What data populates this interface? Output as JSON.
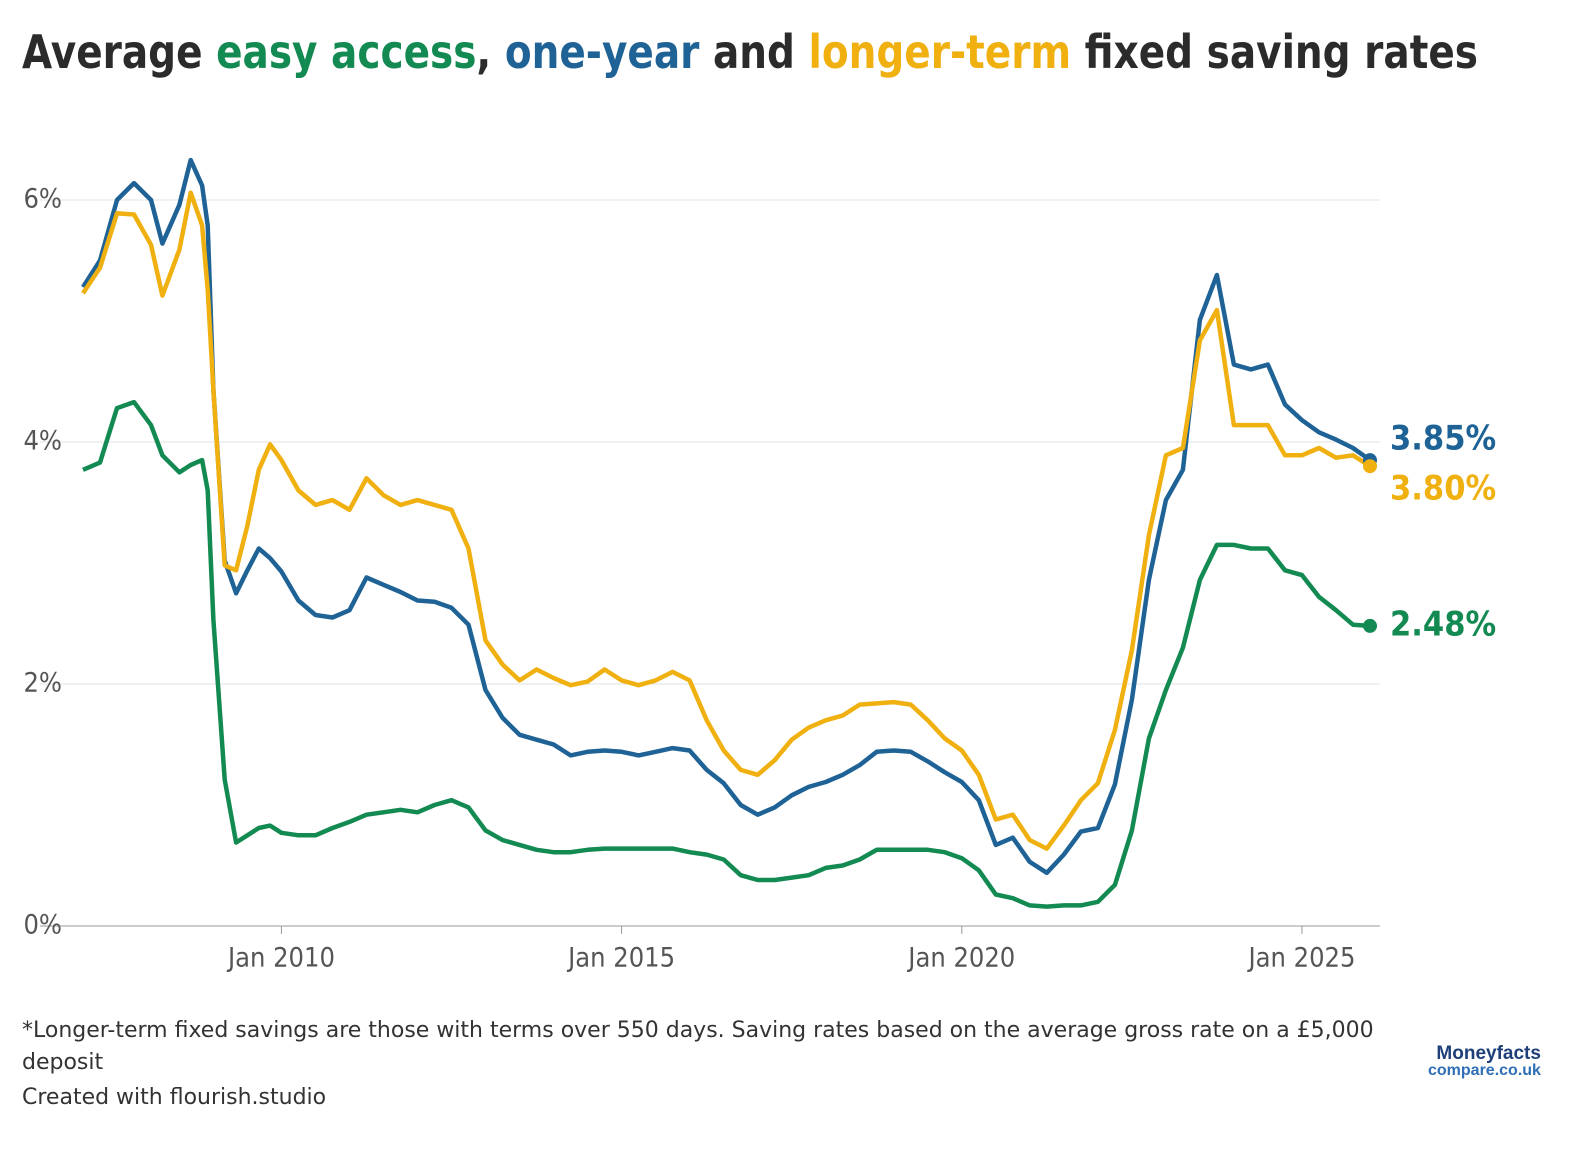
{
  "chart_data": {
    "type": "line",
    "title_parts": [
      {
        "text": "Average ",
        "color": "#2b2b2b"
      },
      {
        "text": "easy access",
        "color": "#138a52"
      },
      {
        "text": ", ",
        "color": "#2b2b2b"
      },
      {
        "text": "one-year",
        "color": "#1f6396"
      },
      {
        "text": " and ",
        "color": "#2b2b2b"
      },
      {
        "text": "longer-term",
        "color": "#efb010"
      },
      {
        "text": " fixed saving rates",
        "color": "#2b2b2b"
      }
    ],
    "x": [
      "2007-02",
      "2007-05",
      "2007-08",
      "2007-11",
      "2008-02",
      "2008-04",
      "2008-07",
      "2008-09",
      "2008-11",
      "2008-12",
      "2009-01",
      "2009-03",
      "2009-05",
      "2009-07",
      "2009-09",
      "2009-11",
      "2010-01",
      "2010-04",
      "2010-07",
      "2010-10",
      "2011-01",
      "2011-04",
      "2011-07",
      "2011-10",
      "2012-01",
      "2012-04",
      "2012-07",
      "2012-10",
      "2013-01",
      "2013-04",
      "2013-07",
      "2013-10",
      "2014-01",
      "2014-04",
      "2014-07",
      "2014-10",
      "2015-01",
      "2015-04",
      "2015-07",
      "2015-10",
      "2016-01",
      "2016-04",
      "2016-07",
      "2016-10",
      "2017-01",
      "2017-04",
      "2017-07",
      "2017-10",
      "2018-01",
      "2018-04",
      "2018-07",
      "2018-10",
      "2019-01",
      "2019-04",
      "2019-07",
      "2019-10",
      "2020-01",
      "2020-04",
      "2020-07",
      "2020-10",
      "2021-01",
      "2021-04",
      "2021-07",
      "2021-10",
      "2022-01",
      "2022-04",
      "2022-07",
      "2022-10",
      "2023-01",
      "2023-04",
      "2023-07",
      "2023-10",
      "2024-01",
      "2024-04",
      "2024-07",
      "2024-10",
      "2025-01",
      "2025-04",
      "2025-07",
      "2025-10",
      "2026-01"
    ],
    "series": [
      {
        "name": "one-year",
        "color": "#1f6396",
        "end_label": "3.85%",
        "values": [
          5.28,
          5.5,
          6.0,
          6.14,
          6.0,
          5.64,
          5.96,
          6.33,
          6.12,
          5.79,
          4.43,
          3.02,
          2.75,
          2.94,
          3.12,
          3.04,
          2.93,
          2.69,
          2.57,
          2.55,
          2.61,
          2.88,
          2.82,
          2.76,
          2.69,
          2.68,
          2.63,
          2.49,
          1.95,
          1.72,
          1.58,
          1.54,
          1.5,
          1.41,
          1.44,
          1.45,
          1.44,
          1.41,
          1.44,
          1.47,
          1.45,
          1.29,
          1.18,
          1.0,
          0.92,
          0.98,
          1.08,
          1.15,
          1.19,
          1.25,
          1.33,
          1.44,
          1.45,
          1.44,
          1.36,
          1.27,
          1.19,
          1.04,
          0.67,
          0.73,
          0.53,
          0.44,
          0.59,
          0.78,
          0.81,
          1.17,
          1.87,
          2.86,
          3.52,
          3.77,
          5.01,
          5.38,
          4.64,
          4.6,
          4.64,
          4.31,
          4.18,
          4.08,
          4.02,
          3.95,
          3.85
        ]
      },
      {
        "name": "longer-term",
        "color": "#efb010",
        "end_label": "3.80%",
        "values": [
          5.23,
          5.44,
          5.89,
          5.88,
          5.63,
          5.21,
          5.59,
          6.06,
          5.79,
          5.26,
          4.43,
          2.98,
          2.94,
          3.31,
          3.77,
          3.98,
          3.85,
          3.6,
          3.48,
          3.52,
          3.44,
          3.7,
          3.56,
          3.48,
          3.52,
          3.48,
          3.44,
          3.12,
          2.36,
          2.16,
          2.03,
          2.12,
          2.05,
          1.99,
          2.02,
          2.12,
          2.03,
          1.99,
          2.03,
          2.1,
          2.03,
          1.7,
          1.45,
          1.29,
          1.25,
          1.37,
          1.54,
          1.64,
          1.7,
          1.74,
          1.83,
          1.84,
          1.85,
          1.83,
          1.7,
          1.55,
          1.45,
          1.25,
          0.88,
          0.92,
          0.71,
          0.64,
          0.83,
          1.04,
          1.18,
          1.62,
          2.28,
          3.23,
          3.89,
          3.95,
          4.84,
          5.09,
          4.14,
          4.14,
          4.14,
          3.89,
          3.89,
          3.95,
          3.87,
          3.89,
          3.8
        ]
      },
      {
        "name": "easy access",
        "color": "#138a52",
        "end_label": "2.48%",
        "values": [
          3.77,
          3.83,
          4.28,
          4.33,
          4.14,
          3.89,
          3.75,
          3.81,
          3.85,
          3.6,
          2.53,
          1.21,
          0.69,
          0.75,
          0.81,
          0.83,
          0.77,
          0.75,
          0.75,
          0.81,
          0.86,
          0.92,
          0.94,
          0.96,
          0.94,
          1.0,
          1.04,
          0.98,
          0.79,
          0.71,
          0.67,
          0.63,
          0.61,
          0.61,
          0.63,
          0.64,
          0.64,
          0.64,
          0.64,
          0.64,
          0.61,
          0.59,
          0.55,
          0.42,
          0.38,
          0.38,
          0.4,
          0.42,
          0.48,
          0.5,
          0.55,
          0.63,
          0.63,
          0.63,
          0.63,
          0.61,
          0.56,
          0.46,
          0.26,
          0.23,
          0.17,
          0.16,
          0.17,
          0.17,
          0.2,
          0.34,
          0.79,
          1.55,
          1.95,
          2.3,
          2.86,
          3.15,
          3.15,
          3.12,
          3.12,
          2.94,
          2.9,
          2.72,
          2.61,
          2.49,
          2.48
        ]
      }
    ],
    "xlim": [
      "2007-02",
      "2026-01"
    ],
    "xticks": [
      {
        "value": "2010-01",
        "label": "Jan 2010"
      },
      {
        "value": "2015-01",
        "label": "Jan 2015"
      },
      {
        "value": "2020-01",
        "label": "Jan 2020"
      },
      {
        "value": "2025-01",
        "label": "Jan 2025"
      }
    ],
    "ylim": [
      0,
      6.5
    ],
    "yticks": [
      {
        "value": 0,
        "label": "0%"
      },
      {
        "value": 2,
        "label": "2%"
      },
      {
        "value": 4,
        "label": "4%"
      },
      {
        "value": 6,
        "label": "6%"
      }
    ],
    "grid": true
  },
  "footer": {
    "note": "*Longer-term fixed savings are those with terms over 550 days. Saving rates based on the average gross rate on a £5,000 deposit",
    "credit": "Created with flourish.studio",
    "logo_name": "Moneyfacts",
    "logo_sub": "compare.co.uk"
  }
}
